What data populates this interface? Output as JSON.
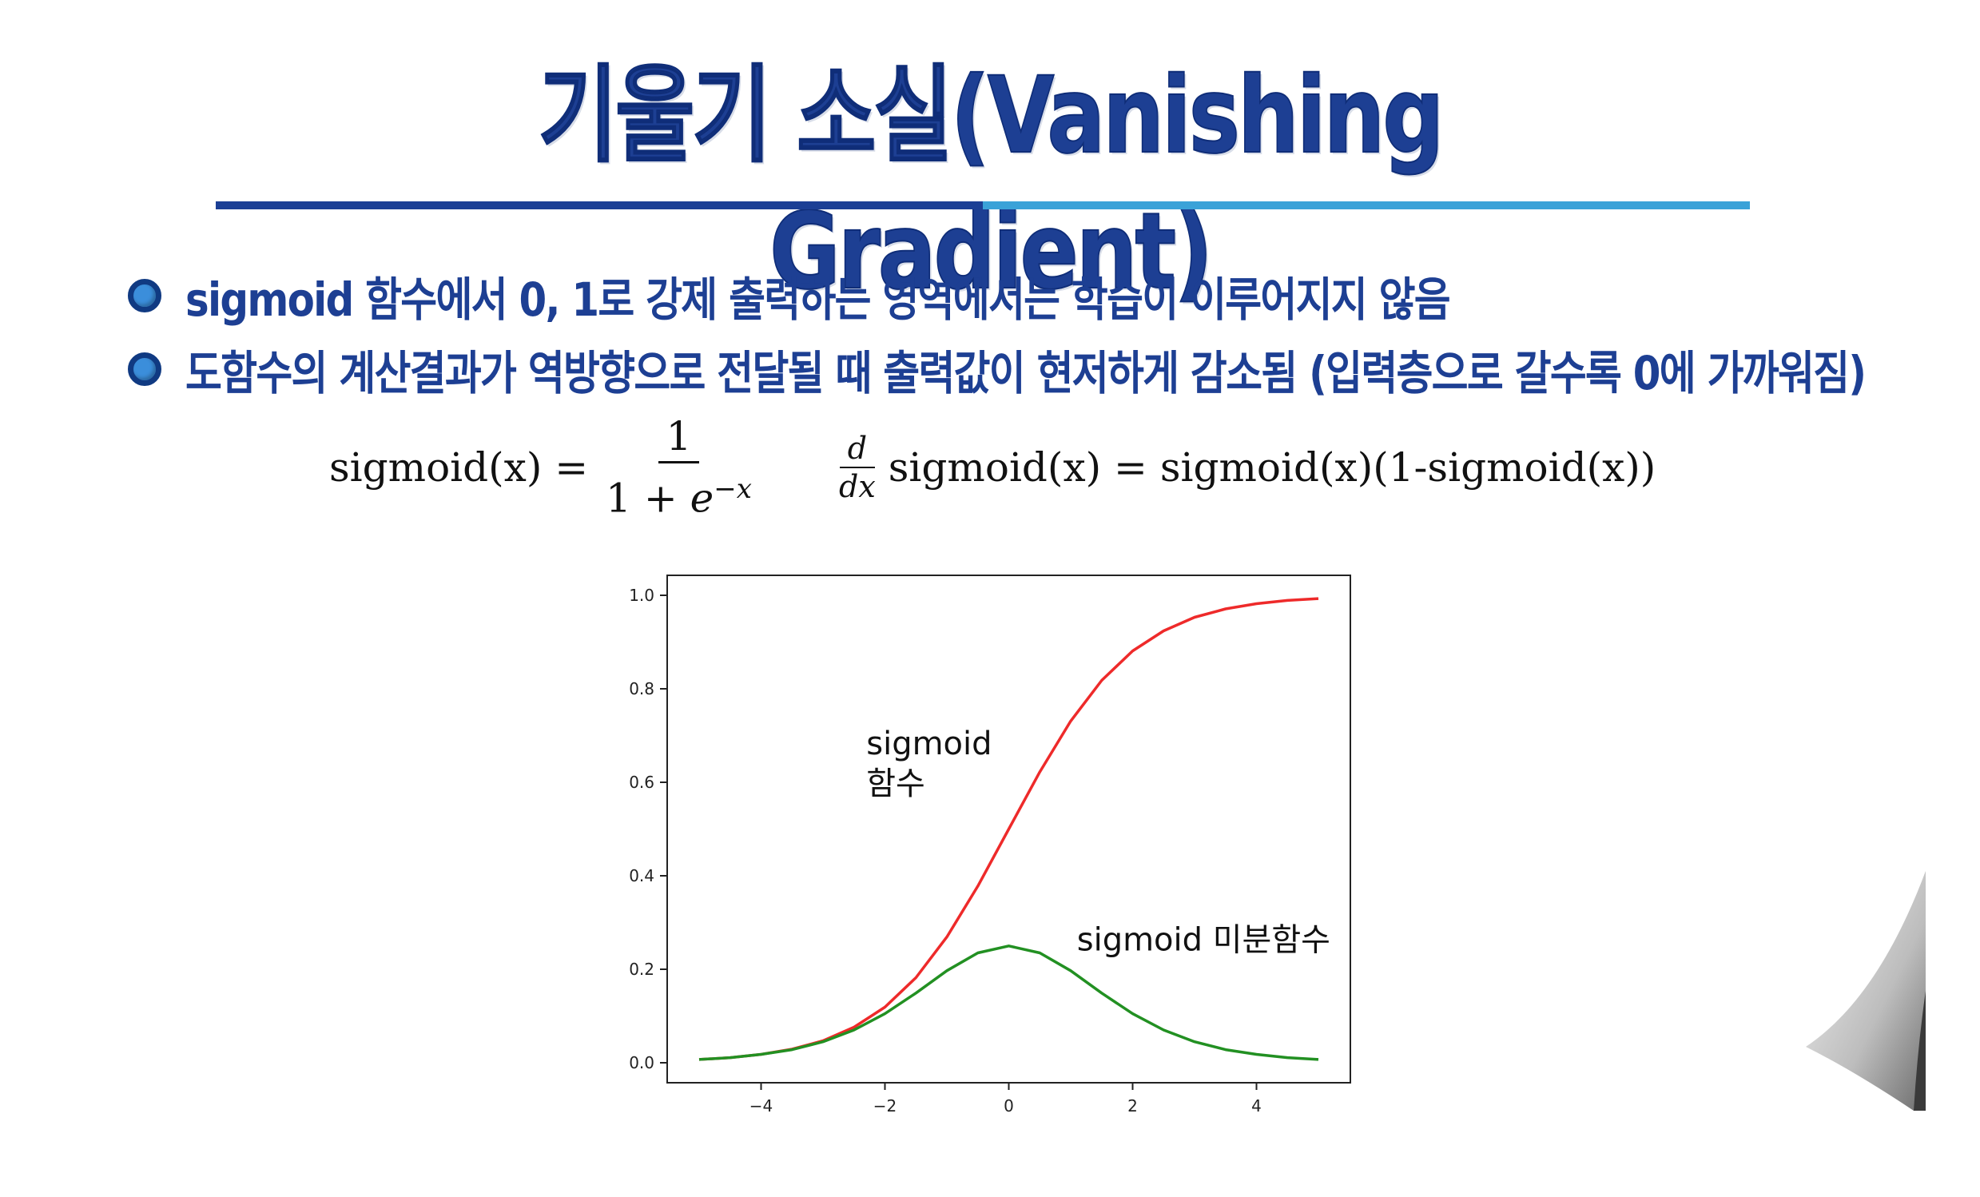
{
  "slide": {
    "title": "기울기 소실(Vanishing Gradient)",
    "bullets": [
      "sigmoid 함수에서 0, 1로 강제 출력하는 영역에서는 학습이 이루어지지 않음",
      "도함수의 계산결과가 역방향으로 전달될 때 출력값이 현저하게 감소됨 (입력층으로 갈수록 0에 가까워짐)"
    ]
  },
  "formulas": {
    "sigmoid_lhs": "sigmoid(x) =",
    "sigmoid_num": "1",
    "sigmoid_den_base": "1 + ",
    "sigmoid_den_e": "e",
    "sigmoid_den_exp": "−x",
    "deriv_num": "d",
    "deriv_den": "dx",
    "deriv_rhs": "sigmoid(x) = sigmoid(x)(1-sigmoid(x))"
  },
  "colors": {
    "title": "#1d3f93",
    "sigmoid": "#ee2a2a",
    "derivative": "#229022"
  },
  "chart_data": {
    "type": "line",
    "title": "",
    "xlabel": "",
    "ylabel": "",
    "xlim": [
      -5.0,
      5.0
    ],
    "ylim": [
      0.0,
      1.0
    ],
    "x_ticks": [
      -4,
      -2,
      0,
      2,
      4
    ],
    "x_tick_labels": [
      "−4",
      "−2",
      "0",
      "2",
      "4"
    ],
    "y_ticks": [
      0.0,
      0.2,
      0.4,
      0.6,
      0.8,
      1.0
    ],
    "y_tick_labels": [
      "0.0",
      "0.2",
      "0.4",
      "0.6",
      "0.8",
      "1.0"
    ],
    "grid": false,
    "x": [
      -5,
      -4.5,
      -4,
      -3.5,
      -3,
      -2.5,
      -2,
      -1.5,
      -1,
      -0.5,
      0,
      0.5,
      1,
      1.5,
      2,
      2.5,
      3,
      3.5,
      4,
      4.5,
      5
    ],
    "series": [
      {
        "name": "sigmoid",
        "values": [
          0.007,
          0.011,
          0.018,
          0.029,
          0.047,
          0.076,
          0.119,
          0.182,
          0.269,
          0.378,
          0.5,
          0.622,
          0.731,
          0.818,
          0.881,
          0.924,
          0.953,
          0.971,
          0.982,
          0.989,
          0.993
        ]
      },
      {
        "name": "",
        "values": [
          0.007,
          0.011,
          0.018,
          0.028,
          0.045,
          0.07,
          0.105,
          0.149,
          0.197,
          0.235,
          0.25,
          0.235,
          0.197,
          0.149,
          0.105,
          0.07,
          0.045,
          0.028,
          0.018,
          0.011,
          0.007
        ]
      }
    ],
    "annotations": [
      {
        "text": "sigmoid\n함수",
        "x": -2.3,
        "y": 0.66
      },
      {
        "text": "sigmoid 미분함수",
        "x": 1.1,
        "y": 0.24
      }
    ]
  }
}
